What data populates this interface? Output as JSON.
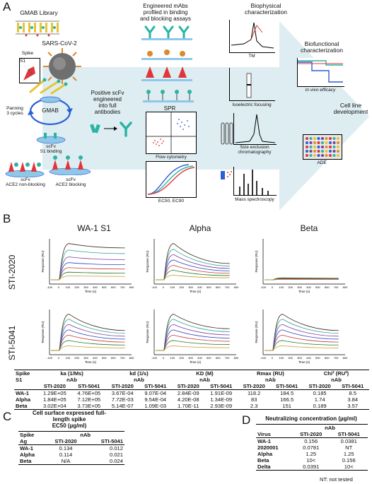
{
  "panel_a": {
    "letter": "A",
    "gmab_library": "GMAB Library",
    "sars": "SARS-CoV-2",
    "spike": "Spike",
    "s1": "S1",
    "panning": "Panning\n3 cycles",
    "gmab": "GMAB",
    "scfv_s1": "scFv\nS1 binding",
    "scfv_nonblock": "scFv\nACE2 non-blocking",
    "scfv_block": "scFv\nACE2 blocking",
    "positive_scfv": "Positive scFv\nengineered\ninto full\nantibodies",
    "engineered": "Engineered mAbs\nprofiled in binding\nand blocking assays",
    "spr": "SPR",
    "flow": "Flow cytometry",
    "ec50": "EC50, EC90",
    "biophysical": "Biophysical\ncharacterization",
    "tm": "TM",
    "iso": "Isoelectric focusing",
    "sec": "Size exclusion\nchromatography",
    "mass": "Mass spectroscopy",
    "biofunctional": "Biofunctional\ncharacterization",
    "invivo": "In vivo efficacy",
    "cellline": "Cell line\ndevelopment",
    "ade": "ADE"
  },
  "panel_b": {
    "letter": "B",
    "col_titles": [
      "WA-1 S1",
      "Alpha",
      "Beta"
    ],
    "row_titles": [
      "STI-2020",
      "STI-5041"
    ],
    "y_axis_label": "Response (RU)",
    "x_axis_label": "Time (s)",
    "x_ticks": [
      "-100",
      "0",
      "100",
      "200",
      "300",
      "400",
      "500",
      "600",
      "700",
      "800"
    ]
  },
  "table_b": {
    "group_headers": [
      "ka (1/Ms)",
      "kd (1/s)",
      "KD (M)",
      "Rmax (RU)",
      "Chi² (RU²)"
    ],
    "spike_label": "Spike",
    "s1_label": "S1",
    "nab": "nAb",
    "sub_headers": [
      "STI-2020",
      "STI-5041"
    ],
    "rows": [
      {
        "name": "WA-1",
        "cells": [
          "1.29E+05",
          "4.76E+05",
          "3.67E-04",
          "9.07E-04",
          "2.84E-09",
          "1.91E-09",
          "118.2",
          "184.5",
          "0.185",
          "8.5"
        ]
      },
      {
        "name": "Alpha",
        "cells": [
          "1.84E+05",
          "7.12E+05",
          "7.72E-03",
          "9.54E-04",
          "4.20E-08",
          "1.34E-09",
          "83",
          "166.5",
          "1.74",
          "3.84"
        ]
      },
      {
        "name": "Beta",
        "cells": [
          "3.02E+04",
          "3.73E+05",
          "5.14E-07",
          "1.09E-03",
          "1.70E-11",
          "2.93E-09",
          "2.3",
          "151",
          "0.189",
          "3.57"
        ]
      }
    ]
  },
  "panel_c": {
    "letter": "C",
    "title": "Cell surface expressed full-\nlength spike\nEC50 (µg/ml)",
    "head1": "Spike",
    "head2": "Ag",
    "nab": "nAb",
    "sub_headers": [
      "STI-2020",
      "STI-5041"
    ],
    "rows": [
      {
        "name": "WA-1",
        "cells": [
          "0.134",
          "0.012"
        ]
      },
      {
        "name": "Alpha",
        "cells": [
          "0.114",
          "0.021"
        ]
      },
      {
        "name": "Beta",
        "cells": [
          "N/A",
          "0.024"
        ]
      }
    ]
  },
  "panel_d": {
    "letter": "D",
    "title": "Neutralizing concentration (µg/ml)",
    "virus": "Virus",
    "nab": "nAb",
    "sub_headers": [
      "STI-2020",
      "STI-5041"
    ],
    "rows": [
      {
        "name": "WA-1",
        "cells": [
          "0.156",
          "0.0381"
        ]
      },
      {
        "name": "2020001",
        "cells": [
          "0.0781",
          "NT"
        ]
      },
      {
        "name": "Alpha",
        "cells": [
          "1.25",
          "1.25"
        ]
      },
      {
        "name": "Beta",
        "cells": [
          "10<",
          "0.156"
        ]
      },
      {
        "name": "Delta",
        "cells": [
          "0.0391",
          "10<"
        ]
      }
    ],
    "footnote": "NT: not tested"
  },
  "colors": {
    "arrow": "#d6e8ee",
    "teal": "#2bb3a3",
    "red": "#e0353a",
    "yellow": "#e7c532",
    "blue": "#2a5fd6",
    "curve_colors": [
      "#3b2b12",
      "#2aa39a",
      "#7d3c98",
      "#2a44c8",
      "#c43b2e",
      "#1e7a2e",
      "#c99a2a"
    ]
  }
}
